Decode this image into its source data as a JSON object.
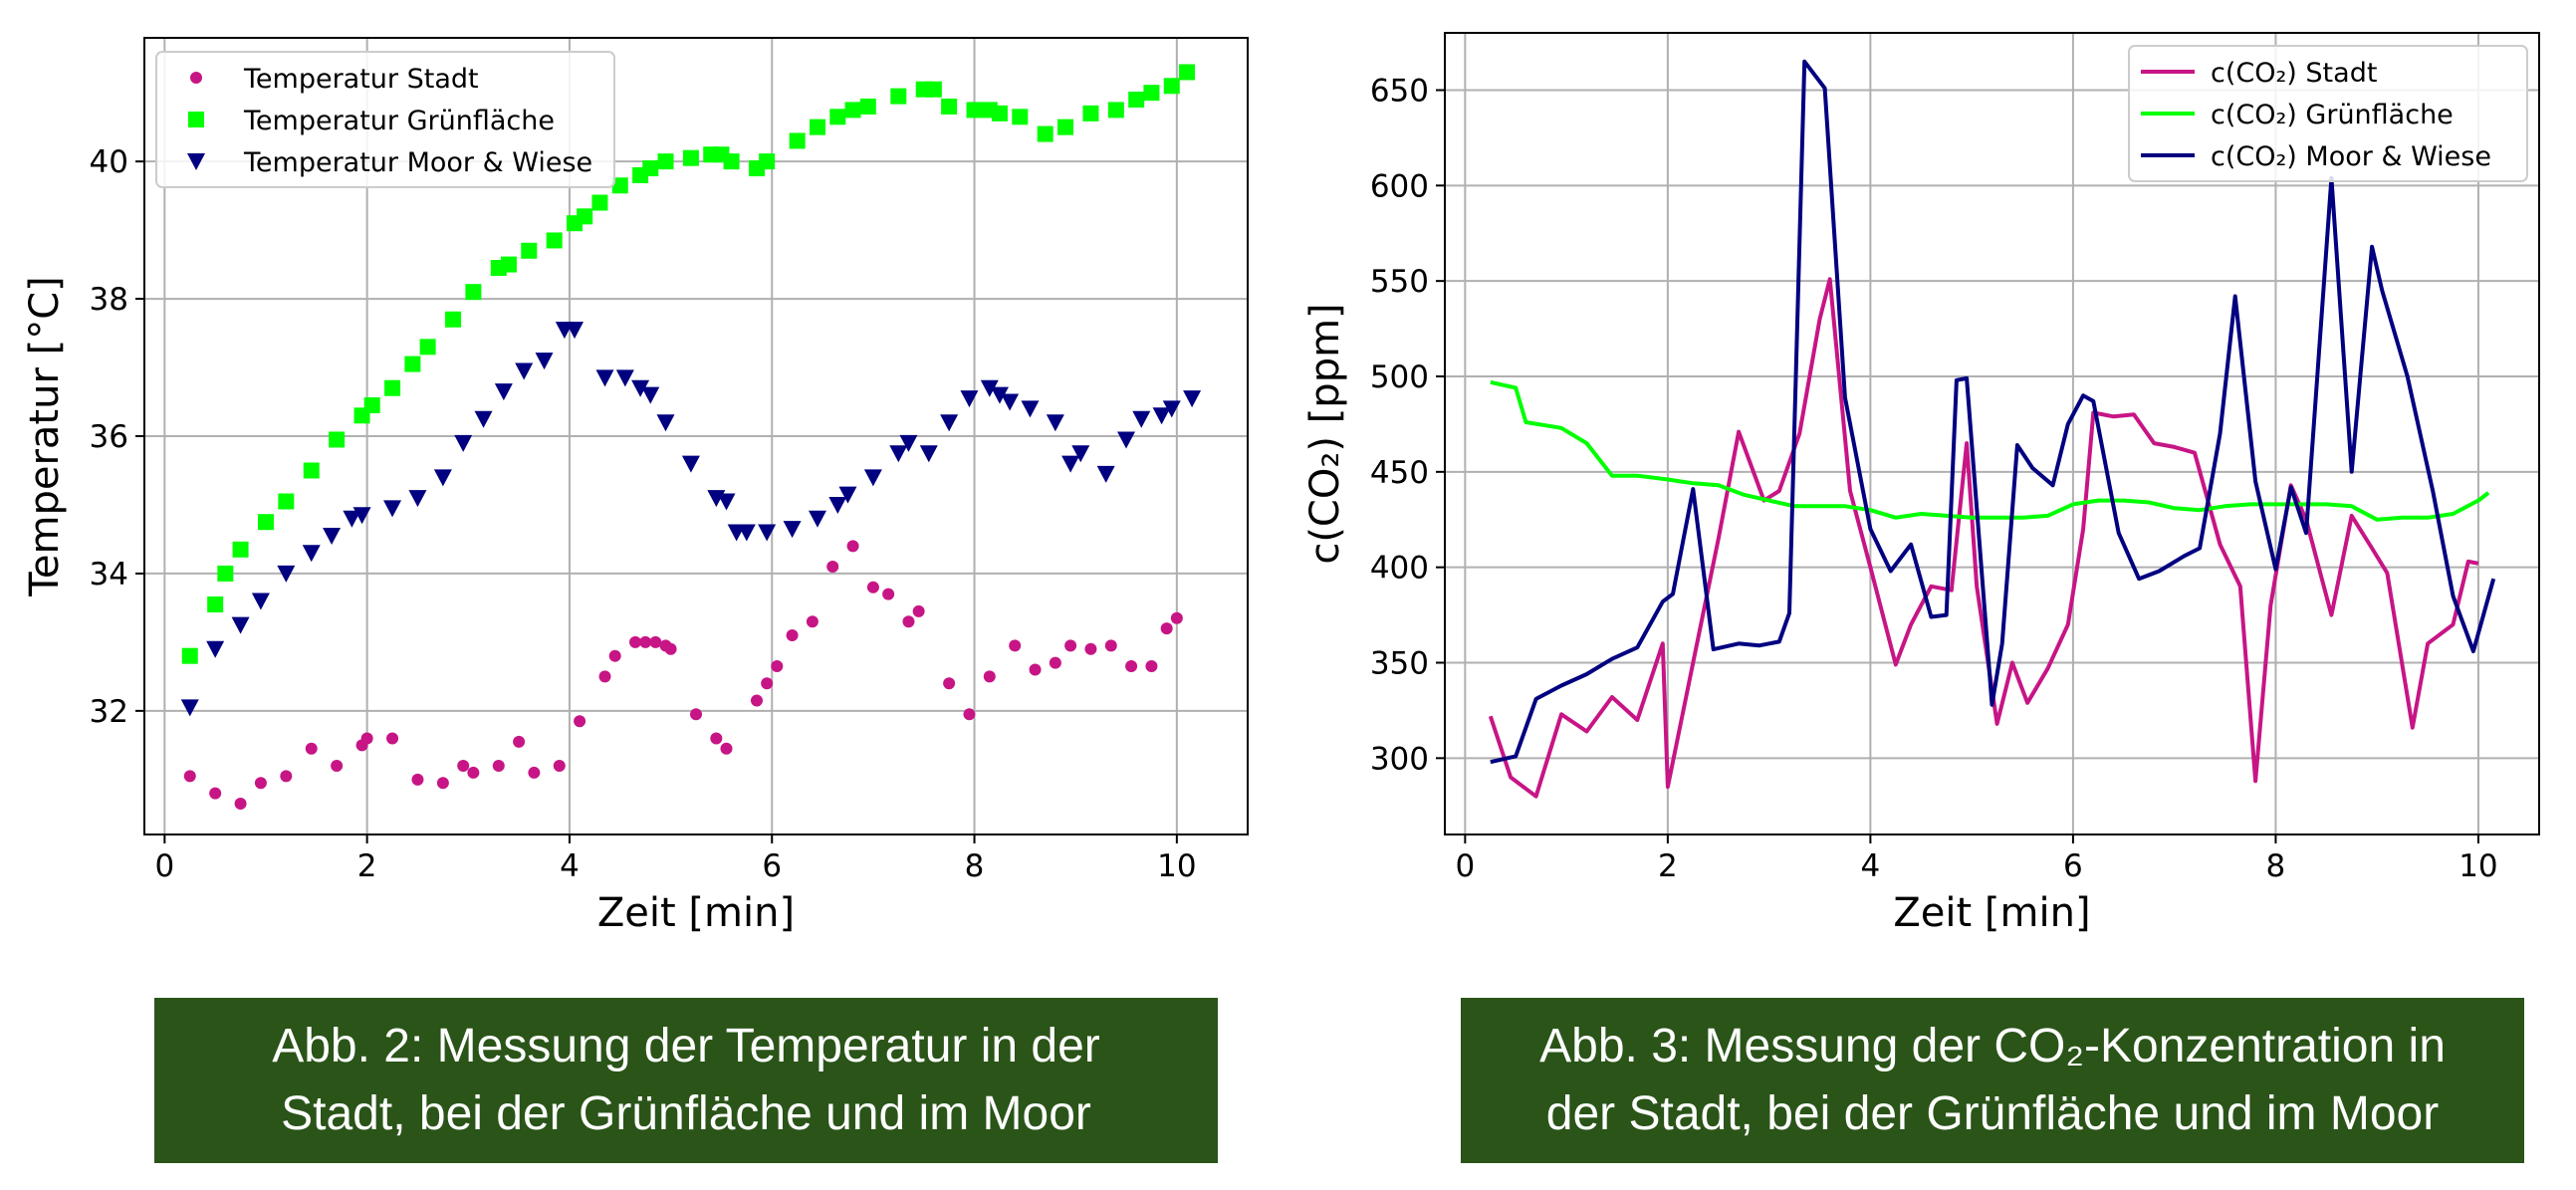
{
  "chart_data": [
    {
      "type": "scatter",
      "xlabel": "Zeit [min]",
      "ylabel": "Temperatur [°C]",
      "xlim": [
        -0.2,
        10.7
      ],
      "ylim": [
        30.2,
        41.8
      ],
      "xticks": [
        0,
        2,
        4,
        6,
        8,
        10
      ],
      "yticks": [
        32,
        34,
        36,
        38,
        40
      ],
      "xtick_labels": [
        "0",
        "2",
        "4",
        "6",
        "8",
        "10"
      ],
      "ytick_labels": [
        "32",
        "34",
        "36",
        "38",
        "40"
      ],
      "grid": true,
      "legend_position": "top-left",
      "series": [
        {
          "name": "Temperatur Stadt",
          "color": "#c71585",
          "marker": "circle",
          "x": [
            0.25,
            0.5,
            0.75,
            0.95,
            1.2,
            1.45,
            1.7,
            1.95,
            2.0,
            2.25,
            2.5,
            2.75,
            2.95,
            3.05,
            3.3,
            3.5,
            3.65,
            3.9,
            4.1,
            4.35,
            4.45,
            4.65,
            4.75,
            4.85,
            4.95,
            5.0,
            5.25,
            5.45,
            5.55,
            5.85,
            5.95,
            6.05,
            6.2,
            6.4,
            6.6,
            6.8,
            7.0,
            7.15,
            7.35,
            7.45,
            7.75,
            7.95,
            8.15,
            8.4,
            8.6,
            8.8,
            8.95,
            9.15,
            9.35,
            9.55,
            9.75,
            9.9,
            10.0
          ],
          "y": [
            31.05,
            30.8,
            30.65,
            30.95,
            31.05,
            31.45,
            31.2,
            31.5,
            31.6,
            31.6,
            31.0,
            30.95,
            31.2,
            31.1,
            31.2,
            31.55,
            31.1,
            31.2,
            31.85,
            32.5,
            32.8,
            33.0,
            33.0,
            33.0,
            32.95,
            32.9,
            31.95,
            31.6,
            31.45,
            32.15,
            32.4,
            32.65,
            33.1,
            33.3,
            34.1,
            34.4,
            33.8,
            33.7,
            33.3,
            33.45,
            32.4,
            31.95,
            32.5,
            32.95,
            32.6,
            32.7,
            32.95,
            32.9,
            32.95,
            32.65,
            32.65,
            33.2,
            33.35
          ]
        },
        {
          "name": "Temperatur Grünfläche",
          "color": "#00ff00",
          "marker": "square",
          "x": [
            0.25,
            0.5,
            0.6,
            0.75,
            1.0,
            1.2,
            1.45,
            1.7,
            1.95,
            2.05,
            2.25,
            2.45,
            2.6,
            2.85,
            3.05,
            3.3,
            3.4,
            3.6,
            3.85,
            4.05,
            4.15,
            4.3,
            4.5,
            4.7,
            4.8,
            4.95,
            5.2,
            5.4,
            5.5,
            5.6,
            5.85,
            5.95,
            6.25,
            6.45,
            6.65,
            6.8,
            6.95,
            7.25,
            7.5,
            7.6,
            7.75,
            8.0,
            8.15,
            8.25,
            8.45,
            8.7,
            8.9,
            9.15,
            9.4,
            9.6,
            9.75,
            9.95,
            10.1
          ],
          "y": [
            32.8,
            33.55,
            34.0,
            34.35,
            34.75,
            35.05,
            35.5,
            35.95,
            36.3,
            36.45,
            36.7,
            37.05,
            37.3,
            37.7,
            38.1,
            38.45,
            38.5,
            38.7,
            38.85,
            39.1,
            39.2,
            39.4,
            39.65,
            39.8,
            39.9,
            40.0,
            40.05,
            40.1,
            40.1,
            40.0,
            39.9,
            40.0,
            40.3,
            40.5,
            40.65,
            40.75,
            40.8,
            40.95,
            41.05,
            41.05,
            40.8,
            40.75,
            40.75,
            40.7,
            40.65,
            40.4,
            40.5,
            40.7,
            40.75,
            40.9,
            41.0,
            41.1,
            41.3
          ]
        },
        {
          "name": "Temperatur Moor & Wiese",
          "color": "#000080",
          "marker": "triangle-down",
          "x": [
            0.25,
            0.5,
            0.75,
            0.95,
            1.2,
            1.45,
            1.65,
            1.85,
            1.95,
            2.25,
            2.5,
            2.75,
            2.95,
            3.15,
            3.35,
            3.55,
            3.75,
            3.95,
            4.05,
            4.35,
            4.55,
            4.7,
            4.8,
            4.95,
            5.2,
            5.45,
            5.55,
            5.65,
            5.75,
            5.95,
            6.2,
            6.45,
            6.65,
            6.75,
            7.0,
            7.25,
            7.35,
            7.55,
            7.75,
            7.95,
            8.15,
            8.25,
            8.35,
            8.55,
            8.8,
            8.95,
            9.05,
            9.3,
            9.5,
            9.65,
            9.85,
            9.95,
            10.15
          ],
          "y": [
            32.05,
            32.9,
            33.25,
            33.6,
            34.0,
            34.3,
            34.55,
            34.8,
            34.85,
            34.95,
            35.1,
            35.4,
            35.9,
            36.25,
            36.65,
            36.95,
            37.1,
            37.55,
            37.55,
            36.85,
            36.85,
            36.7,
            36.6,
            36.2,
            35.6,
            35.1,
            35.05,
            34.6,
            34.6,
            34.6,
            34.65,
            34.8,
            35.0,
            35.15,
            35.4,
            35.75,
            35.9,
            35.75,
            36.2,
            36.55,
            36.7,
            36.6,
            36.5,
            36.4,
            36.2,
            35.6,
            35.75,
            35.45,
            35.95,
            36.25,
            36.3,
            36.4,
            36.55
          ]
        }
      ]
    },
    {
      "type": "line",
      "xlabel": "Zeit [min]",
      "ylabel": "c(CO₂) [ppm]",
      "xlim": [
        -0.2,
        10.6
      ],
      "ylim": [
        260,
        680
      ],
      "xticks": [
        0,
        2,
        4,
        6,
        8,
        10
      ],
      "yticks": [
        300,
        350,
        400,
        450,
        500,
        550,
        600,
        650
      ],
      "xtick_labels": [
        "0",
        "2",
        "4",
        "6",
        "8",
        "10"
      ],
      "ytick_labels": [
        "300",
        "350",
        "400",
        "450",
        "500",
        "550",
        "600",
        "650"
      ],
      "grid": true,
      "legend_position": "top-right",
      "series": [
        {
          "name": "c(CO₂) Stadt",
          "color": "#c71585",
          "x": [
            0.25,
            0.45,
            0.7,
            0.95,
            1.2,
            1.45,
            1.7,
            1.95,
            2.0,
            2.25,
            2.5,
            2.7,
            2.95,
            3.1,
            3.3,
            3.5,
            3.6,
            3.8,
            4.0,
            4.25,
            4.4,
            4.6,
            4.8,
            4.95,
            5.05,
            5.25,
            5.4,
            5.55,
            5.75,
            5.95,
            6.1,
            6.2,
            6.4,
            6.6,
            6.8,
            7.0,
            7.2,
            7.45,
            7.65,
            7.8,
            7.95,
            8.15,
            8.3,
            8.55,
            8.75,
            8.95,
            9.1,
            9.35,
            9.5,
            9.75,
            9.9,
            10.0
          ],
          "y": [
            322,
            290,
            280,
            323,
            314,
            332,
            320,
            360,
            285,
            350,
            415,
            471,
            435,
            440,
            470,
            530,
            551,
            440,
            400,
            349,
            370,
            390,
            388,
            465,
            390,
            318,
            350,
            329,
            347,
            370,
            420,
            481,
            479,
            480,
            465,
            463,
            460,
            412,
            390,
            288,
            380,
            443,
            425,
            375,
            427,
            410,
            397,
            316,
            360,
            370,
            403,
            402
          ]
        },
        {
          "name": "c(CO₂) Grünfläche",
          "color": "#00ff00",
          "x": [
            0.25,
            0.5,
            0.6,
            0.95,
            1.2,
            1.45,
            1.7,
            2.0,
            2.25,
            2.5,
            2.75,
            3.0,
            3.25,
            3.5,
            3.75,
            4.0,
            4.25,
            4.5,
            4.75,
            5.0,
            5.25,
            5.5,
            5.75,
            6.0,
            6.25,
            6.5,
            6.75,
            7.0,
            7.25,
            7.5,
            7.75,
            8.0,
            8.25,
            8.5,
            8.75,
            9.0,
            9.25,
            9.5,
            9.75,
            10.0,
            10.1
          ],
          "y": [
            497,
            494,
            476,
            473,
            465,
            448,
            448,
            446,
            444,
            443,
            438,
            435,
            432,
            432,
            432,
            430,
            426,
            428,
            427,
            426,
            426,
            426,
            427,
            433,
            435,
            435,
            434,
            431,
            430,
            432,
            433,
            433,
            433,
            433,
            432,
            425,
            426,
            426,
            428,
            435,
            439
          ]
        },
        {
          "name": "c(CO₂) Moor & Wiese",
          "color": "#000080",
          "x": [
            0.25,
            0.5,
            0.7,
            0.95,
            1.2,
            1.45,
            1.7,
            1.95,
            2.05,
            2.25,
            2.45,
            2.7,
            2.9,
            3.1,
            3.2,
            3.35,
            3.55,
            3.75,
            4.0,
            4.2,
            4.4,
            4.6,
            4.75,
            4.85,
            4.95,
            5.2,
            5.3,
            5.45,
            5.6,
            5.8,
            5.95,
            6.1,
            6.2,
            6.45,
            6.65,
            6.85,
            7.1,
            7.25,
            7.45,
            7.6,
            7.8,
            8.0,
            8.15,
            8.3,
            8.55,
            8.75,
            8.95,
            9.05,
            9.3,
            9.55,
            9.75,
            9.95,
            10.15
          ],
          "y": [
            298,
            301,
            331,
            338,
            344,
            352,
            358,
            382,
            386,
            441,
            357,
            360,
            359,
            361,
            376,
            665,
            651,
            489,
            420,
            398,
            412,
            374,
            375,
            498,
            499,
            328,
            360,
            464,
            452,
            443,
            475,
            490,
            487,
            418,
            394,
            398,
            406,
            410,
            470,
            542,
            445,
            399,
            442,
            418,
            604,
            450,
            568,
            545,
            500,
            440,
            385,
            356,
            394
          ]
        }
      ]
    }
  ],
  "captions": {
    "fig2": "Abb. 2: Messung der Temperatur in der\nStadt, bei der Grünfläche und im Moor",
    "fig3": "Abb. 3: Messung der CO₂-Konzentration in\nder Stadt, bei der Grünfläche und im Moor"
  }
}
